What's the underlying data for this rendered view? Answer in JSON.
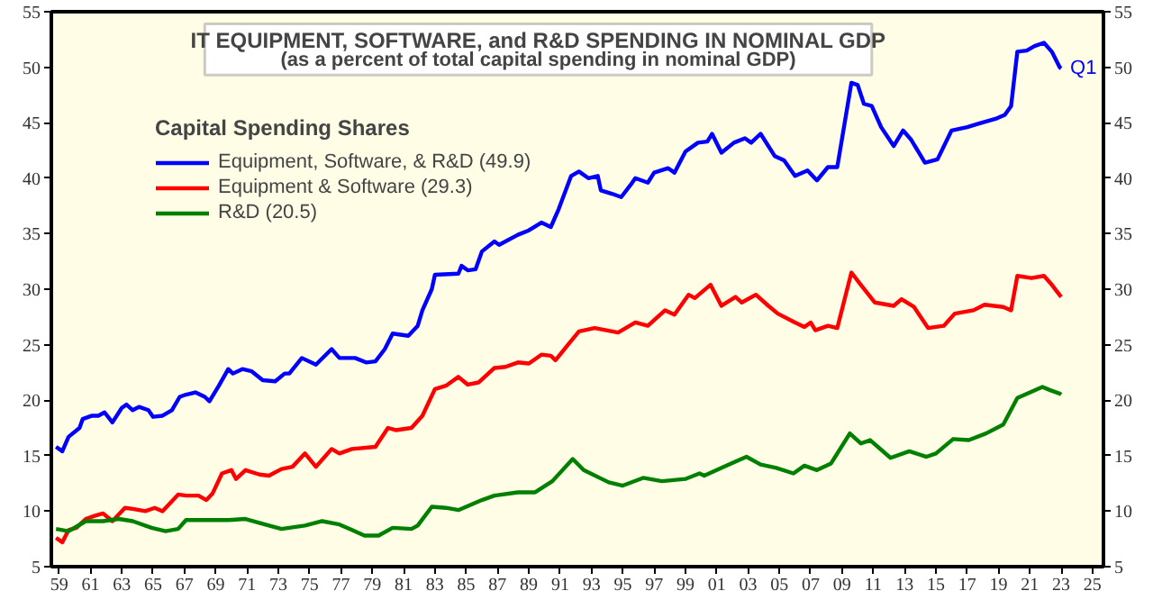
{
  "chart_data": {
    "type": "line",
    "title": "IT EQUIPMENT, SOFTWARE, and R&D SPENDING IN NOMINAL GDP",
    "subtitle": "(as a percent of total capital spending in nominal GDP)",
    "legend_title": "Capital Spending Shares",
    "legend": "top left",
    "grid": false,
    "line_style": "solid",
    "marker": "none",
    "annotations": [
      {
        "text": "Q1",
        "x": 2023.0,
        "y": 49.9
      }
    ],
    "xlim": [
      1958.5,
      2025.7
    ],
    "xticks": [
      {
        "value": 1959,
        "label": "59"
      },
      {
        "value": 1961,
        "label": "61"
      },
      {
        "value": 1963,
        "label": "63"
      },
      {
        "value": 1965,
        "label": "65"
      },
      {
        "value": 1967,
        "label": "67"
      },
      {
        "value": 1969,
        "label": "69"
      },
      {
        "value": 1971,
        "label": "71"
      },
      {
        "value": 1973,
        "label": "73"
      },
      {
        "value": 1975,
        "label": "75"
      },
      {
        "value": 1977,
        "label": "77"
      },
      {
        "value": 1979,
        "label": "79"
      },
      {
        "value": 1981,
        "label": "81"
      },
      {
        "value": 1983,
        "label": "83"
      },
      {
        "value": 1985,
        "label": "85"
      },
      {
        "value": 1987,
        "label": "87"
      },
      {
        "value": 1989,
        "label": "89"
      },
      {
        "value": 1991,
        "label": "91"
      },
      {
        "value": 1993,
        "label": "93"
      },
      {
        "value": 1995,
        "label": "95"
      },
      {
        "value": 1997,
        "label": "97"
      },
      {
        "value": 1999,
        "label": "99"
      },
      {
        "value": 2001,
        "label": "01"
      },
      {
        "value": 2003,
        "label": "03"
      },
      {
        "value": 2005,
        "label": "05"
      },
      {
        "value": 2007,
        "label": "07"
      },
      {
        "value": 2009,
        "label": "09"
      },
      {
        "value": 2011,
        "label": "11"
      },
      {
        "value": 2013,
        "label": "13"
      },
      {
        "value": 2015,
        "label": "15"
      },
      {
        "value": 2017,
        "label": "17"
      },
      {
        "value": 2019,
        "label": "19"
      },
      {
        "value": 2021,
        "label": "21"
      },
      {
        "value": 2023,
        "label": "23"
      },
      {
        "value": 2025,
        "label": "25"
      }
    ],
    "ylim": [
      5,
      55
    ],
    "yticks": [
      5,
      10,
      15,
      20,
      25,
      30,
      35,
      40,
      45,
      50,
      55
    ],
    "y2lim": [
      5,
      55
    ],
    "y2ticks": [
      5,
      10,
      15,
      20,
      25,
      30,
      35,
      40,
      45,
      50,
      55
    ],
    "series": [
      {
        "name": "Equipment, Software, & R&D (49.9)",
        "color": "#0000ff",
        "x": [
          1958.8,
          1959.2,
          1959.6,
          1960.3,
          1960.5,
          1961.1,
          1961.5,
          1961.9,
          1962.4,
          1963.0,
          1963.3,
          1963.7,
          1964.1,
          1964.7,
          1965.0,
          1965.6,
          1966.2,
          1966.7,
          1967.1,
          1967.7,
          1968.3,
          1968.6,
          1969.2,
          1969.8,
          1970.1,
          1970.7,
          1971.3,
          1972.0,
          1972.8,
          1973.4,
          1973.7,
          1974.5,
          1975.4,
          1976.4,
          1976.9,
          1977.9,
          1978.6,
          1979.2,
          1979.8,
          1980.3,
          1981.3,
          1981.9,
          1982.2,
          1982.8,
          1983.0,
          1984.5,
          1984.7,
          1985.1,
          1985.6,
          1986.0,
          1986.8,
          1987.1,
          1988.3,
          1989.0,
          1989.8,
          1990.4,
          1990.9,
          1991.7,
          1992.2,
          1992.8,
          1993.4,
          1993.6,
          1994.3,
          1994.9,
          1995.5,
          1995.8,
          1996.6,
          1997.0,
          1997.9,
          1998.3,
          1999.0,
          1999.8,
          2000.4,
          2000.7,
          2001.3,
          2002.1,
          2002.8,
          2003.2,
          2003.8,
          2004.7,
          2005.3,
          2006.0,
          2006.8,
          2007.4,
          2008.1,
          2008.7,
          2009.6,
          2010.0,
          2010.4,
          2010.9,
          2011.5,
          2012.3,
          2012.9,
          2013.4,
          2014.3,
          2015.1,
          2016.0,
          2017.0,
          2017.7,
          2018.9,
          2019.4,
          2019.8,
          2020.2,
          2020.8,
          2021.3,
          2021.9,
          2022.4,
          2022.9,
          2023.0
        ],
        "values": [
          15.8,
          15.4,
          16.7,
          17.5,
          18.3,
          18.6,
          18.6,
          18.9,
          18.0,
          19.3,
          19.6,
          19.1,
          19.4,
          19.1,
          18.5,
          18.6,
          19.1,
          20.3,
          20.5,
          20.7,
          20.3,
          19.9,
          21.3,
          22.8,
          22.4,
          22.8,
          22.6,
          21.8,
          21.7,
          22.4,
          22.4,
          23.8,
          23.2,
          24.6,
          23.8,
          23.8,
          23.4,
          23.5,
          24.6,
          26.0,
          25.8,
          26.7,
          28.1,
          30.0,
          31.3,
          31.4,
          32.1,
          31.7,
          31.8,
          33.4,
          34.3,
          34.0,
          34.9,
          35.3,
          36.0,
          35.6,
          37.2,
          40.2,
          40.6,
          40.0,
          40.2,
          38.9,
          38.6,
          38.3,
          39.4,
          40.0,
          39.6,
          40.5,
          40.9,
          40.5,
          42.4,
          43.2,
          43.3,
          44.0,
          42.3,
          43.2,
          43.6,
          43.2,
          44.0,
          42.0,
          41.6,
          40.2,
          40.7,
          39.8,
          41.0,
          41.0,
          48.6,
          48.4,
          46.7,
          46.5,
          44.6,
          42.9,
          44.3,
          43.5,
          41.4,
          41.7,
          44.3,
          44.6,
          44.9,
          45.4,
          45.7,
          46.5,
          51.4,
          51.5,
          51.9,
          52.2,
          51.4,
          50.0,
          49.9
        ]
      },
      {
        "name": "Equipment & Software (29.3)",
        "color": "#ff0000",
        "x": [
          1958.8,
          1959.2,
          1959.6,
          1960.1,
          1960.7,
          1961.3,
          1961.8,
          1962.4,
          1963.2,
          1963.7,
          1964.5,
          1965.1,
          1965.6,
          1966.6,
          1967.1,
          1967.9,
          1968.4,
          1968.8,
          1969.4,
          1970.0,
          1970.3,
          1970.9,
          1971.8,
          1972.4,
          1973.2,
          1973.9,
          1974.7,
          1975.4,
          1976.4,
          1976.9,
          1977.7,
          1979.2,
          1980.0,
          1980.5,
          1981.5,
          1982.2,
          1983.0,
          1983.7,
          1984.5,
          1985.1,
          1985.8,
          1986.8,
          1987.5,
          1988.3,
          1989.0,
          1989.8,
          1990.4,
          1990.7,
          1991.5,
          1992.2,
          1993.2,
          1994.7,
          1995.8,
          1996.6,
          1997.7,
          1998.3,
          1999.2,
          1999.6,
          2000.6,
          2001.3,
          2002.2,
          2002.6,
          2003.5,
          2004.3,
          2004.9,
          2006.0,
          2006.6,
          2007.0,
          2007.3,
          2008.1,
          2008.7,
          2009.6,
          2010.2,
          2011.1,
          2012.3,
          2012.8,
          2013.6,
          2014.5,
          2015.5,
          2016.2,
          2017.4,
          2018.1,
          2019.3,
          2019.8,
          2020.2,
          2021.1,
          2021.9,
          2022.4,
          2023.0
        ],
        "values": [
          7.6,
          7.2,
          8.3,
          8.5,
          9.3,
          9.6,
          9.8,
          9.1,
          10.3,
          10.2,
          10.0,
          10.3,
          10.0,
          11.5,
          11.4,
          11.4,
          11.0,
          11.6,
          13.4,
          13.7,
          12.9,
          13.7,
          13.3,
          13.2,
          13.8,
          14.0,
          15.2,
          14.0,
          15.6,
          15.2,
          15.6,
          15.8,
          17.5,
          17.3,
          17.5,
          18.6,
          21.0,
          21.3,
          22.1,
          21.4,
          21.6,
          22.9,
          23.0,
          23.4,
          23.3,
          24.1,
          24.0,
          23.6,
          25.0,
          26.2,
          26.5,
          26.1,
          27.0,
          26.7,
          28.1,
          27.7,
          29.5,
          29.2,
          30.4,
          28.5,
          29.3,
          28.8,
          29.5,
          28.5,
          27.8,
          27.0,
          26.6,
          27.0,
          26.3,
          26.7,
          26.5,
          31.5,
          30.4,
          28.8,
          28.5,
          29.1,
          28.4,
          26.5,
          26.7,
          27.8,
          28.1,
          28.6,
          28.4,
          28.1,
          31.2,
          31.0,
          31.2,
          30.4,
          29.3
        ]
      },
      {
        "name": "R&D (20.5)",
        "color": "#008000",
        "x": [
          1958.8,
          1959.6,
          1960.7,
          1961.8,
          1962.8,
          1963.7,
          1964.9,
          1965.8,
          1966.6,
          1967.1,
          1968.6,
          1969.8,
          1970.9,
          1972.4,
          1973.2,
          1974.7,
          1975.8,
          1976.9,
          1977.7,
          1978.5,
          1979.4,
          1980.3,
          1981.5,
          1981.9,
          1982.8,
          1983.7,
          1984.5,
          1986.0,
          1986.8,
          1988.3,
          1989.4,
          1990.5,
          1991.8,
          1992.5,
          1994.1,
          1995.0,
          1996.3,
          1997.5,
          1999.0,
          1999.9,
          2000.2,
          2001.6,
          2002.9,
          2003.8,
          2004.8,
          2005.9,
          2006.6,
          2007.4,
          2008.3,
          2009.5,
          2010.2,
          2010.8,
          2012.1,
          2013.3,
          2014.4,
          2015.0,
          2016.1,
          2017.1,
          2018.2,
          2019.3,
          2020.2,
          2021.8,
          2022.3,
          2022.9,
          2023.0
        ],
        "values": [
          8.4,
          8.2,
          9.1,
          9.1,
          9.3,
          9.1,
          8.5,
          8.2,
          8.4,
          9.2,
          9.2,
          9.2,
          9.3,
          8.7,
          8.4,
          8.7,
          9.1,
          8.8,
          8.3,
          7.8,
          7.8,
          8.5,
          8.4,
          8.7,
          10.4,
          10.3,
          10.1,
          11.0,
          11.4,
          11.7,
          11.7,
          12.7,
          14.7,
          13.7,
          12.6,
          12.3,
          13.0,
          12.7,
          12.9,
          13.4,
          13.2,
          14.1,
          14.9,
          14.2,
          13.9,
          13.4,
          14.1,
          13.7,
          14.3,
          17.0,
          16.1,
          16.4,
          14.8,
          15.4,
          14.9,
          15.2,
          16.5,
          16.4,
          17.0,
          17.8,
          20.2,
          21.2,
          20.9,
          20.6,
          20.5
        ]
      }
    ]
  }
}
